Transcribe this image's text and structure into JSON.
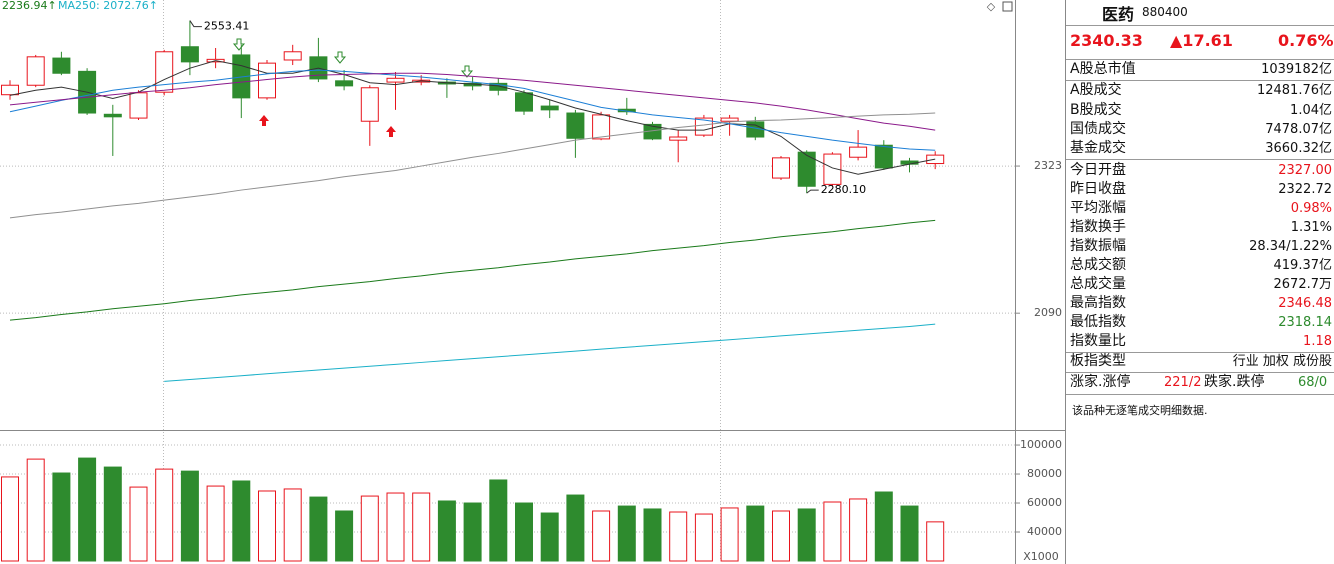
{
  "chart_data": [
    {
      "type": "candlestick",
      "legend": [
        {
          "text": "2236.94↑",
          "color": "#1a7a1a"
        },
        {
          "text": "MA250: 2072.76↑",
          "color": "#1ab0c8"
        }
      ],
      "high_label": "2553.41",
      "low_label": "2280.10",
      "ylim": [
        1905,
        2586
      ],
      "yticks": [
        2090,
        2323
      ],
      "up_color": "#e8141c",
      "down_color": "#2e8b2e",
      "open": [
        2436,
        2451,
        2494,
        2473,
        2405,
        2399,
        2440,
        2512,
        2488,
        2499,
        2431,
        2491,
        2496,
        2458,
        2394,
        2456,
        2456,
        2456,
        2454,
        2454,
        2439,
        2418,
        2407,
        2366,
        2413,
        2389,
        2364,
        2372,
        2394,
        2393,
        2304,
        2345,
        2294,
        2337,
        2356,
        2331,
        2327
      ],
      "high": [
        2459,
        2499,
        2504,
        2478,
        2420,
        2443,
        2507,
        2553.41,
        2510,
        2515,
        2491,
        2515,
        2526,
        2475,
        2451,
        2472,
        2467,
        2462,
        2464,
        2462,
        2443,
        2428,
        2412,
        2409,
        2431,
        2393,
        2380,
        2404,
        2404,
        2401,
        2339,
        2348,
        2345,
        2380,
        2364,
        2336,
        2346.48
      ],
      "low": [
        2428,
        2448,
        2467,
        2404,
        2339,
        2396,
        2435,
        2467,
        2478,
        2399,
        2428,
        2483,
        2456,
        2443,
        2355,
        2412,
        2451,
        2431,
        2443,
        2435,
        2404,
        2399,
        2336,
        2364,
        2404,
        2364,
        2329,
        2369,
        2371,
        2364,
        2301,
        2280.1,
        2291,
        2332,
        2317,
        2313,
        2318.14
      ],
      "close": [
        2451,
        2496,
        2470,
        2407,
        2401,
        2439,
        2504,
        2488,
        2492,
        2431,
        2486,
        2504,
        2461,
        2450,
        2447,
        2462,
        2459,
        2453,
        2450,
        2443,
        2410,
        2412,
        2367,
        2404,
        2409,
        2366,
        2369,
        2399,
        2399,
        2369,
        2336,
        2291,
        2342,
        2353,
        2320,
        2326,
        2340.33
      ],
      "series": [
        {
          "color": "#333333",
          "values": [
            2435,
            2443,
            2448,
            2440,
            2430,
            2440,
            2460,
            2478,
            2490,
            2482,
            2470,
            2470,
            2478,
            2468,
            2455,
            2452,
            2458,
            2455,
            2453,
            2450,
            2440,
            2428,
            2415,
            2405,
            2395,
            2386,
            2380,
            2380,
            2390,
            2388,
            2370,
            2340,
            2320,
            2310,
            2318,
            2326,
            2334
          ]
        },
        {
          "color": "#1c7fd6",
          "values": [
            2409,
            2418,
            2427,
            2435,
            2443,
            2448,
            2452,
            2456,
            2459,
            2464,
            2469,
            2473,
            2475,
            2473,
            2470,
            2467,
            2464,
            2460,
            2456,
            2452,
            2446,
            2436,
            2426,
            2416,
            2410,
            2404,
            2400,
            2396,
            2390,
            2383,
            2376,
            2370,
            2364,
            2359,
            2354,
            2350,
            2348
          ]
        },
        {
          "color": "#8b1a8b",
          "values": [
            2420,
            2424,
            2428,
            2432,
            2436,
            2440,
            2443,
            2447,
            2452,
            2456,
            2460,
            2464,
            2467,
            2468,
            2469,
            2470,
            2470,
            2468,
            2465,
            2462,
            2459,
            2455,
            2451,
            2447,
            2443,
            2439,
            2435,
            2431,
            2427,
            2423,
            2418,
            2412,
            2405,
            2398,
            2391,
            2386,
            2380
          ]
        },
        {
          "color": "#909090",
          "values": [
            2241,
            2246,
            2250,
            2255,
            2260,
            2264,
            2269,
            2274,
            2279,
            2285,
            2290,
            2295,
            2300,
            2306,
            2311,
            2316,
            2323,
            2330,
            2337,
            2343,
            2350,
            2357,
            2364,
            2369,
            2374,
            2379,
            2384,
            2388,
            2393,
            2395,
            2396,
            2398,
            2400,
            2402,
            2404,
            2405,
            2407
          ]
        },
        {
          "color": "#1a7a1a",
          "values": [
            2079,
            2083,
            2088,
            2092,
            2097,
            2101,
            2105,
            2110,
            2114,
            2119,
            2123,
            2127,
            2132,
            2136,
            2140,
            2145,
            2149,
            2154,
            2158,
            2162,
            2167,
            2171,
            2176,
            2180,
            2184,
            2189,
            2193,
            2197,
            2202,
            2206,
            2211,
            2215,
            2219,
            2224,
            2228,
            2233,
            2236.94
          ]
        },
        {
          "color": "#1ab0c8",
          "values": [
            null,
            null,
            null,
            null,
            null,
            null,
            1982,
            1985,
            1988,
            1991,
            1994,
            1997,
            2000,
            2003,
            2006,
            2009,
            2012,
            2015,
            2018,
            2021,
            2024,
            2027,
            2030,
            2033,
            2036,
            2039,
            2042,
            2045,
            2048,
            2051,
            2054,
            2057,
            2060,
            2063,
            2066,
            2069,
            2072.76
          ]
        }
      ]
    },
    {
      "type": "bar",
      "unit_label": "X1000",
      "ylim": [
        20000,
        109000
      ],
      "yticks": [
        40000,
        60000,
        80000,
        100000
      ],
      "values": [
        78000,
        90300,
        80700,
        91000,
        84800,
        71000,
        83400,
        82000,
        71700,
        75200,
        68300,
        69700,
        64100,
        54500,
        64800,
        66900,
        66900,
        61400,
        60000,
        75900,
        60000,
        53100,
        65500,
        54500,
        57900,
        55900,
        53800,
        52400,
        56600,
        57900,
        54500,
        55900,
        60700,
        62800,
        67600,
        57900,
        47000
      ]
    }
  ],
  "quote": {
    "name": "医药",
    "code": "880400",
    "price": "2340.33",
    "change": "▲17.61",
    "percent": "0.76%",
    "rows": [
      {
        "label": "A股总市值",
        "value": "1039182亿"
      },
      {
        "label": "A股成交",
        "value": "12481.76亿"
      },
      {
        "label": "B股成交",
        "value": "1.04亿"
      },
      {
        "label": "国债成交",
        "value": "7478.07亿"
      },
      {
        "label": "基金成交",
        "value": "3660.32亿"
      },
      {
        "label": "今日开盘",
        "value": "2327.00",
        "color": "#e8141c"
      },
      {
        "label": "昨日收盘",
        "value": "2322.72"
      },
      {
        "label": "平均涨幅",
        "value": "0.98%",
        "color": "#e8141c"
      },
      {
        "label": "指数换手",
        "value": "1.31%"
      },
      {
        "label": "指数振幅",
        "value": "28.34/1.22%"
      },
      {
        "label": "总成交额",
        "value": "419.37亿"
      },
      {
        "label": "总成交量",
        "value": "2672.7万"
      },
      {
        "label": "最高指数",
        "value": "2346.48",
        "color": "#e8141c"
      },
      {
        "label": "最低指数",
        "value": "2318.14",
        "color": "#2e8b2e"
      },
      {
        "label": "指数量比",
        "value": "1.18",
        "color": "#e8141c"
      },
      {
        "label": "板指类型",
        "value": "行业 加权 成份股"
      }
    ],
    "breadth": [
      "涨家.涨停",
      "221/2",
      "跌家.跌停",
      "68/0"
    ],
    "note": "该品种无逐笔成交明细数据."
  }
}
